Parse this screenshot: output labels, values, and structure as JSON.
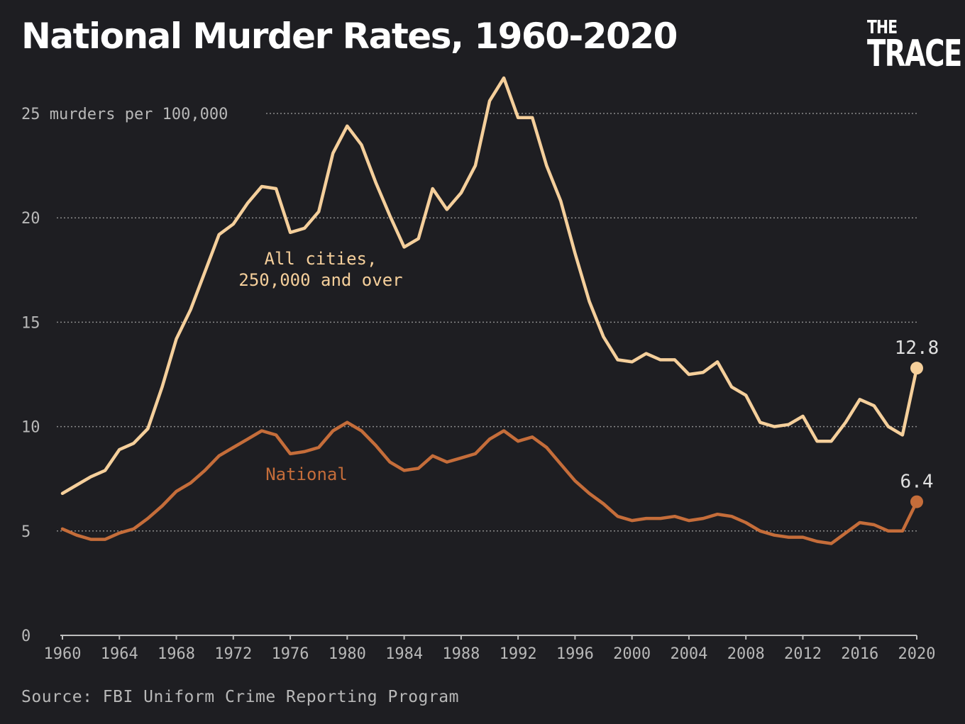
{
  "title": "National Murder Rates, 1960-2020",
  "logo": {
    "line1": "THE",
    "line2": "TRACE"
  },
  "source": "Source: FBI Uniform Crime Reporting Program",
  "colors": {
    "background": "#1e1e22",
    "cities": "#f5cf9b",
    "national": "#c56d3a",
    "grid": "#8a8a8a",
    "axis_text": "#b8b8b8"
  },
  "chart_data": {
    "type": "line",
    "title": "National Murder Rates, 1960-2020",
    "ylabel": "murders per 100,000",
    "ylim": [
      0,
      25
    ],
    "xlim": [
      1960,
      2020
    ],
    "yticks": [
      0,
      5,
      10,
      15,
      20,
      25
    ],
    "y_top_tick_label": "25 murders per 100,000",
    "xticks": [
      1960,
      1964,
      1968,
      1972,
      1976,
      1980,
      1984,
      1988,
      1992,
      1996,
      2000,
      2004,
      2008,
      2012,
      2016,
      2020
    ],
    "grid": true,
    "x": [
      1960,
      1961,
      1962,
      1963,
      1964,
      1965,
      1966,
      1967,
      1968,
      1969,
      1970,
      1971,
      1972,
      1973,
      1974,
      1975,
      1976,
      1977,
      1978,
      1979,
      1980,
      1981,
      1982,
      1983,
      1984,
      1985,
      1986,
      1987,
      1988,
      1989,
      1990,
      1991,
      1992,
      1993,
      1994,
      1995,
      1996,
      1997,
      1998,
      1999,
      2000,
      2001,
      2002,
      2003,
      2004,
      2005,
      2006,
      2007,
      2008,
      2009,
      2010,
      2011,
      2012,
      2013,
      2014,
      2015,
      2016,
      2017,
      2018,
      2019,
      2020
    ],
    "series": [
      {
        "name": "All cities, 250,000 and over",
        "label_lines": [
          "All cities,",
          "250,000 and over"
        ],
        "color": "#f5cf9b",
        "end_label": "12.8",
        "values": [
          6.8,
          7.2,
          7.6,
          7.9,
          8.9,
          9.2,
          9.9,
          11.9,
          14.2,
          15.6,
          17.4,
          19.2,
          19.7,
          20.7,
          21.5,
          21.4,
          19.3,
          19.5,
          20.3,
          23.1,
          24.4,
          23.5,
          21.7,
          20.1,
          18.6,
          19.0,
          21.4,
          20.4,
          21.2,
          22.5,
          25.6,
          26.7,
          24.8,
          24.8,
          22.5,
          20.8,
          18.3,
          16.0,
          14.3,
          13.2,
          13.1,
          13.5,
          13.2,
          13.2,
          12.5,
          12.6,
          13.1,
          11.9,
          11.5,
          10.2,
          10.0,
          10.1,
          10.5,
          9.3,
          9.3,
          10.2,
          11.3,
          11.0,
          10.0,
          9.6,
          12.8
        ]
      },
      {
        "name": "National",
        "label_lines": [
          "National"
        ],
        "color": "#c56d3a",
        "end_label": "6.4",
        "values": [
          5.1,
          4.8,
          4.6,
          4.6,
          4.9,
          5.1,
          5.6,
          6.2,
          6.9,
          7.3,
          7.9,
          8.6,
          9.0,
          9.4,
          9.8,
          9.6,
          8.7,
          8.8,
          9.0,
          9.8,
          10.2,
          9.8,
          9.1,
          8.3,
          7.9,
          8.0,
          8.6,
          8.3,
          8.5,
          8.7,
          9.4,
          9.8,
          9.3,
          9.5,
          9.0,
          8.2,
          7.4,
          6.8,
          6.3,
          5.7,
          5.5,
          5.6,
          5.6,
          5.7,
          5.5,
          5.6,
          5.8,
          5.7,
          5.4,
          5.0,
          4.8,
          4.7,
          4.7,
          4.5,
          4.4,
          4.9,
          5.4,
          5.3,
          5.0,
          5.0,
          6.4
        ]
      }
    ]
  }
}
